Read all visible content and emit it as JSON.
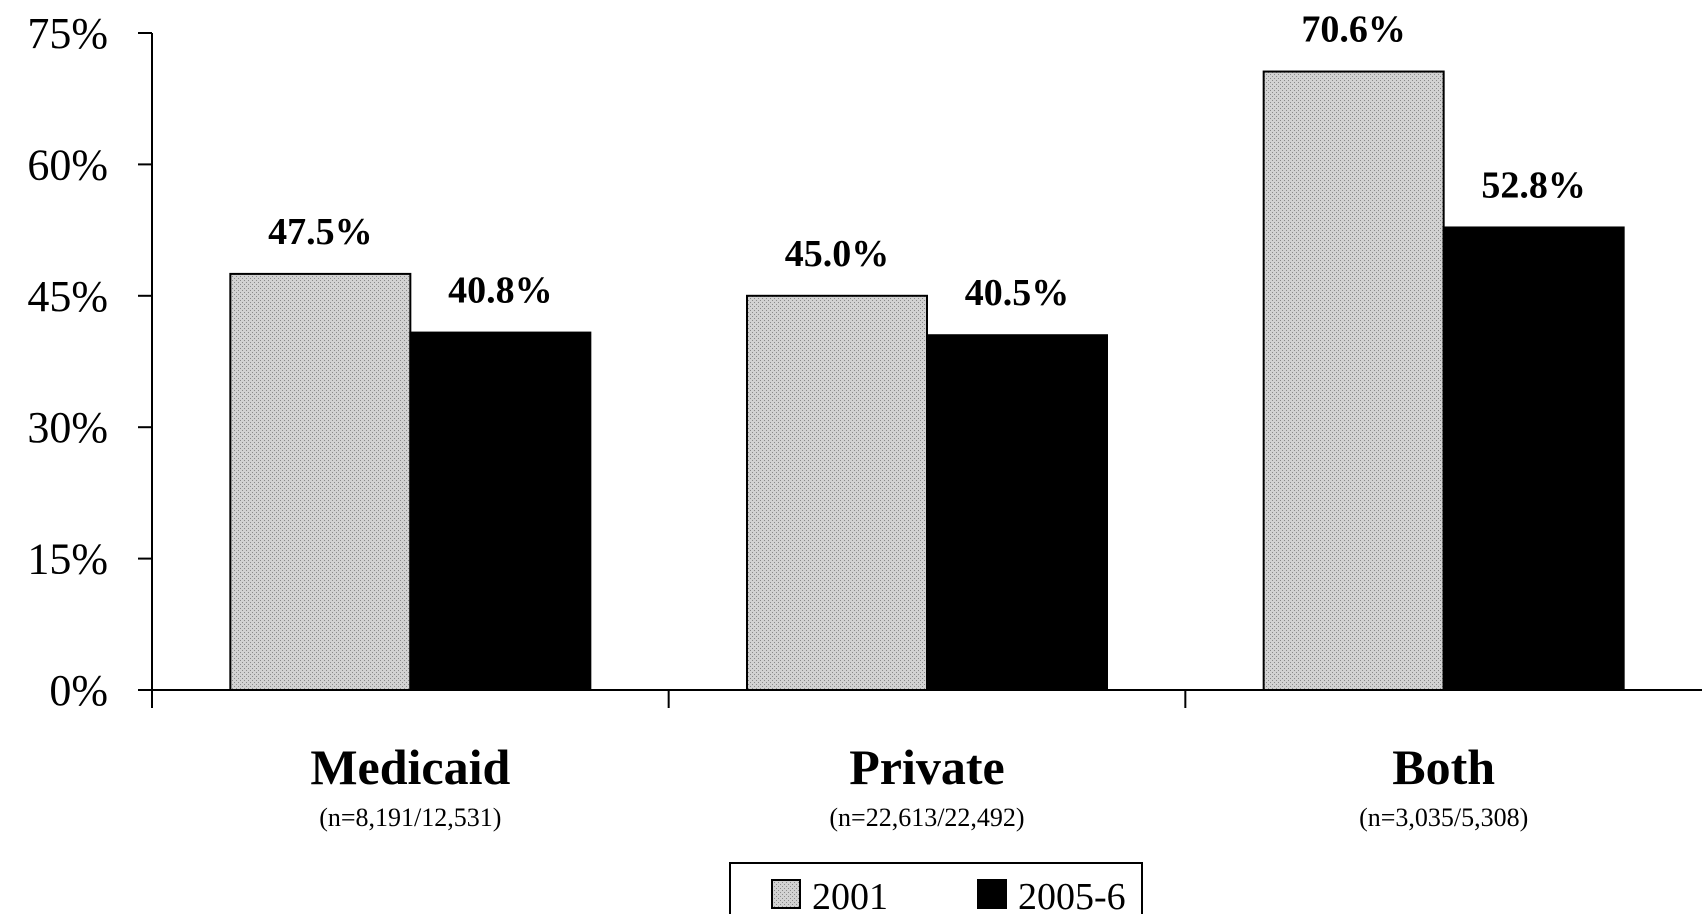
{
  "chart_data": {
    "type": "bar",
    "categories": [
      "Medicaid",
      "Private",
      "Both"
    ],
    "category_sublabels": [
      "(n=8,191/12,531)",
      "(n=22,613/22,492)",
      "(n=3,035/5,308)"
    ],
    "series": [
      {
        "name": "2001",
        "values": [
          47.5,
          45.0,
          70.6
        ],
        "labels": [
          "47.5%",
          "45.0%",
          "70.6%"
        ],
        "color": "#c8c8c8"
      },
      {
        "name": "2005-6",
        "values": [
          40.8,
          40.5,
          52.8
        ],
        "labels": [
          "40.8%",
          "40.5%",
          "52.8%"
        ],
        "color": "#000000"
      }
    ],
    "y_ticks": [
      0,
      15,
      30,
      45,
      60,
      75
    ],
    "y_tick_labels": [
      "0%",
      "15%",
      "30%",
      "45%",
      "60%",
      "75%"
    ],
    "ylim": [
      0,
      75
    ],
    "grid": false,
    "legend_position": "bottom-center"
  }
}
